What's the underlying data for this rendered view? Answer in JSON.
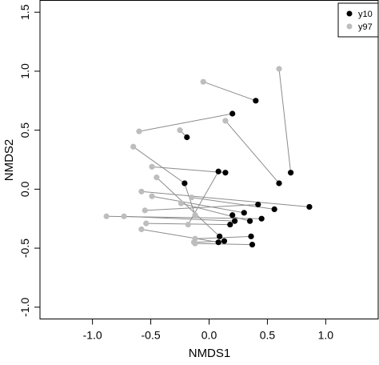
{
  "chart_data": {
    "type": "scatter",
    "title": "",
    "xlabel": "NMDS1",
    "ylabel": "NMDS2",
    "xlim": [
      -1.45,
      1.45
    ],
    "ylim": [
      -1.1,
      1.6
    ],
    "x_ticks": [
      -1.0,
      -0.5,
      0.0,
      0.5,
      1.0
    ],
    "x_tick_labels": [
      "-1.0",
      "-0.5",
      "0.0",
      "0.5",
      "1.0"
    ],
    "y_ticks": [
      -1.0,
      -0.5,
      0.0,
      0.5,
      1.0,
      1.5
    ],
    "y_tick_labels": [
      "-1.0",
      "-0.5",
      "0.0",
      "0.5",
      "1.0",
      "1.5"
    ],
    "legend_position": "top-right",
    "series": [
      {
        "name": "y10",
        "color": "#000000",
        "points": [
          [
            0.6,
            0.05
          ],
          [
            0.7,
            0.14
          ],
          [
            0.4,
            0.75
          ],
          [
            0.2,
            0.64
          ],
          [
            -0.19,
            0.44
          ],
          [
            -0.21,
            0.05
          ],
          [
            0.08,
            0.15
          ],
          [
            0.14,
            0.14
          ],
          [
            0.86,
            -0.15
          ],
          [
            0.56,
            -0.17
          ],
          [
            0.42,
            -0.13
          ],
          [
            0.45,
            -0.25
          ],
          [
            0.3,
            -0.2
          ],
          [
            0.2,
            -0.22
          ],
          [
            0.35,
            -0.27
          ],
          [
            0.22,
            -0.27
          ],
          [
            0.18,
            -0.3
          ],
          [
            0.09,
            -0.4
          ],
          [
            0.36,
            -0.4
          ],
          [
            0.13,
            -0.44
          ],
          [
            0.08,
            -0.45
          ],
          [
            0.37,
            -0.47
          ]
        ]
      },
      {
        "name": "y97",
        "color": "#bdbdbd",
        "points": [
          [
            0.6,
            1.02
          ],
          [
            -0.05,
            0.91
          ],
          [
            0.14,
            0.58
          ],
          [
            -0.25,
            0.5
          ],
          [
            -0.6,
            0.49
          ],
          [
            -0.65,
            0.36
          ],
          [
            -0.49,
            0.19
          ],
          [
            -0.45,
            0.1
          ],
          [
            -0.58,
            -0.02
          ],
          [
            -0.49,
            -0.06
          ],
          [
            -0.15,
            -0.07
          ],
          [
            -0.24,
            -0.12
          ],
          [
            -0.55,
            -0.18
          ],
          [
            -0.88,
            -0.23
          ],
          [
            -0.73,
            -0.23
          ],
          [
            -0.54,
            -0.29
          ],
          [
            -0.58,
            -0.34
          ],
          [
            -0.12,
            -0.42
          ],
          [
            -0.13,
            -0.45
          ],
          [
            -0.12,
            -0.46
          ],
          [
            -0.18,
            -0.3
          ],
          [
            -0.12,
            -0.22
          ]
        ]
      }
    ],
    "pairs": [
      [
        0.6,
        1.02,
        0.7,
        0.14
      ],
      [
        -0.05,
        0.91,
        0.4,
        0.75
      ],
      [
        0.14,
        0.58,
        0.6,
        0.05
      ],
      [
        -0.6,
        0.49,
        0.2,
        0.64
      ],
      [
        -0.25,
        0.5,
        -0.19,
        0.44
      ],
      [
        -0.65,
        0.36,
        -0.21,
        0.05
      ],
      [
        -0.49,
        0.19,
        0.14,
        0.14
      ],
      [
        -0.45,
        0.1,
        0.09,
        -0.4
      ],
      [
        -0.58,
        -0.02,
        0.86,
        -0.15
      ],
      [
        -0.49,
        -0.06,
        0.3,
        -0.2
      ],
      [
        -0.15,
        -0.07,
        0.56,
        -0.17
      ],
      [
        -0.24,
        -0.12,
        0.35,
        -0.27
      ],
      [
        -0.55,
        -0.18,
        0.42,
        -0.13
      ],
      [
        -0.88,
        -0.23,
        0.45,
        -0.25
      ],
      [
        -0.73,
        -0.23,
        0.22,
        -0.27
      ],
      [
        -0.54,
        -0.29,
        0.18,
        -0.3
      ],
      [
        -0.58,
        -0.34,
        0.08,
        -0.45
      ],
      [
        -0.12,
        -0.42,
        0.36,
        -0.4
      ],
      [
        -0.13,
        -0.45,
        0.13,
        -0.44
      ],
      [
        -0.12,
        -0.46,
        0.37,
        -0.47
      ],
      [
        -0.18,
        -0.3,
        0.08,
        0.15
      ],
      [
        -0.12,
        -0.22,
        -0.21,
        0.05
      ]
    ]
  }
}
